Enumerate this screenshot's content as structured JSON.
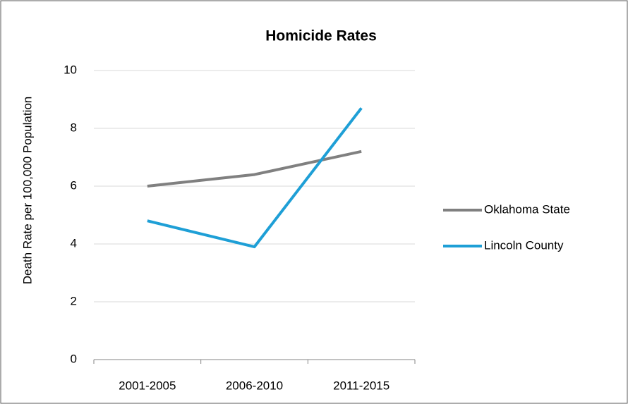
{
  "chart_data": {
    "type": "line",
    "title": "Homicide Rates",
    "y_label": "Death Rate per 100,000 Population",
    "categories": [
      "2001-2005",
      "2006-2010",
      "2011-2015"
    ],
    "series": [
      {
        "name": "Oklahoma State",
        "color": "#808080",
        "values": [
          6.0,
          6.4,
          7.2
        ]
      },
      {
        "name": "Lincoln County",
        "color": "#1e9fd6",
        "values": [
          4.8,
          3.9,
          8.7
        ]
      }
    ],
    "ylim": [
      0,
      10
    ],
    "yticks": [
      0,
      2,
      4,
      6,
      8,
      10
    ],
    "grid": true,
    "legend": "right"
  }
}
